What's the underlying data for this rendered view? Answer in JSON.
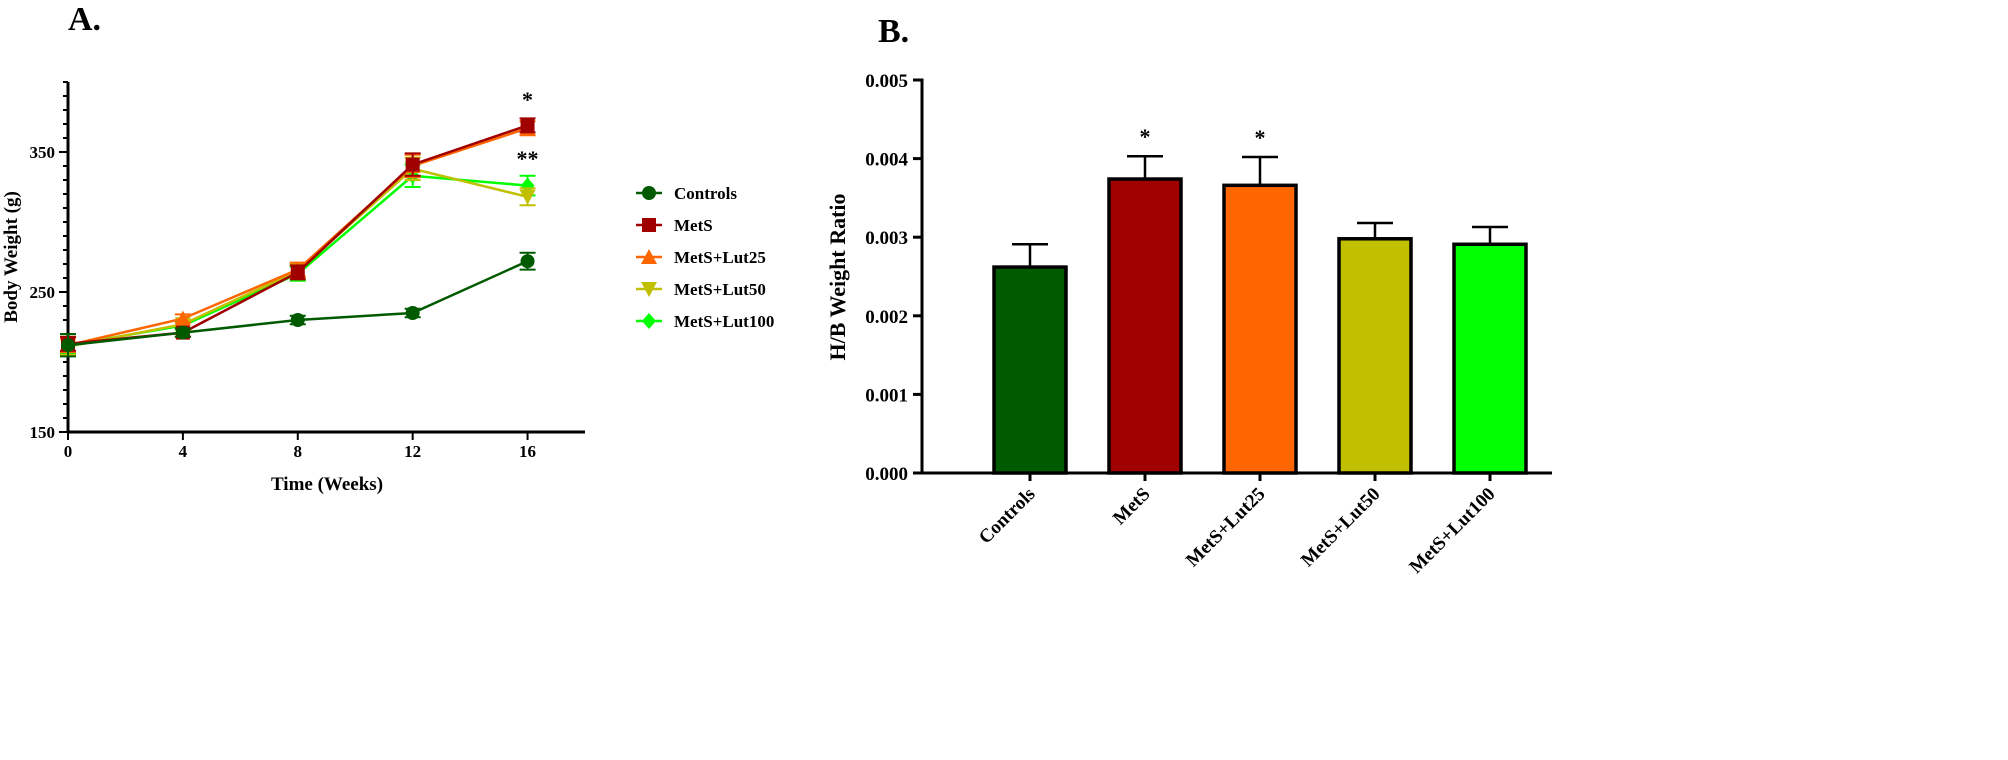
{
  "chart_data": [
    {
      "panel_label": "A.",
      "type": "line",
      "xlabel": "Time (Weeks)",
      "ylabel": "Body Weight (g)",
      "xlim": [
        0,
        18
      ],
      "ylim": [
        150,
        400
      ],
      "xticks": [
        0,
        4,
        8,
        12,
        16
      ],
      "yticks": [
        150,
        250,
        350
      ],
      "grid": false,
      "legend_position": "right",
      "x": [
        0,
        4,
        8,
        12,
        16
      ],
      "series": [
        {
          "name": "Controls",
          "marker": "circle",
          "color": "#005a00",
          "values": [
            212,
            221,
            230,
            235,
            272
          ],
          "errors": [
            8,
            3,
            3,
            3,
            6
          ]
        },
        {
          "name": "MetS",
          "marker": "square",
          "color": "#a00000",
          "values": [
            213,
            221,
            264,
            341,
            369
          ],
          "errors": [
            5,
            3,
            5,
            8,
            5
          ]
        },
        {
          "name": "MetS+Lut25",
          "marker": "triangle-up",
          "color": "#ff6600",
          "values": [
            212,
            231,
            266,
            340,
            367
          ],
          "errors": [
            5,
            3,
            5,
            8,
            5
          ]
        },
        {
          "name": "MetS+Lut50",
          "marker": "triangle-down",
          "color": "#c0c000",
          "values": [
            211,
            227,
            265,
            338,
            318
          ],
          "errors": [
            6,
            3,
            5,
            8,
            6
          ]
        },
        {
          "name": "MetS+Lut100",
          "marker": "diamond",
          "color": "#00ff00",
          "values": [
            212,
            226,
            263,
            333,
            326
          ],
          "errors": [
            6,
            3,
            5,
            8,
            7
          ]
        }
      ],
      "annotations": [
        {
          "text": "*",
          "x": 16,
          "y": 382
        },
        {
          "text": "**",
          "x": 16,
          "y": 340
        }
      ]
    },
    {
      "panel_label": "B.",
      "type": "bar",
      "xlabel": "",
      "ylabel": "H/B Weight Ratio",
      "ylim": [
        0,
        0.005
      ],
      "yticks": [
        "0.000",
        "0.001",
        "0.002",
        "0.003",
        "0.004",
        "0.005"
      ],
      "grid": false,
      "categories": [
        "Controls",
        "MetS",
        "MetS+Lut25",
        "MetS+Lut50",
        "MetS+Lut100"
      ],
      "values": [
        0.00262,
        0.00374,
        0.00366,
        0.00298,
        0.00291
      ],
      "errors": [
        0.00029,
        0.00029,
        0.00036,
        0.0002,
        0.00022
      ],
      "colors": [
        "#005a00",
        "#a00000",
        "#ff6600",
        "#c0c000",
        "#00ff00"
      ],
      "annotations": [
        "",
        "*",
        "*",
        "",
        ""
      ]
    }
  ]
}
